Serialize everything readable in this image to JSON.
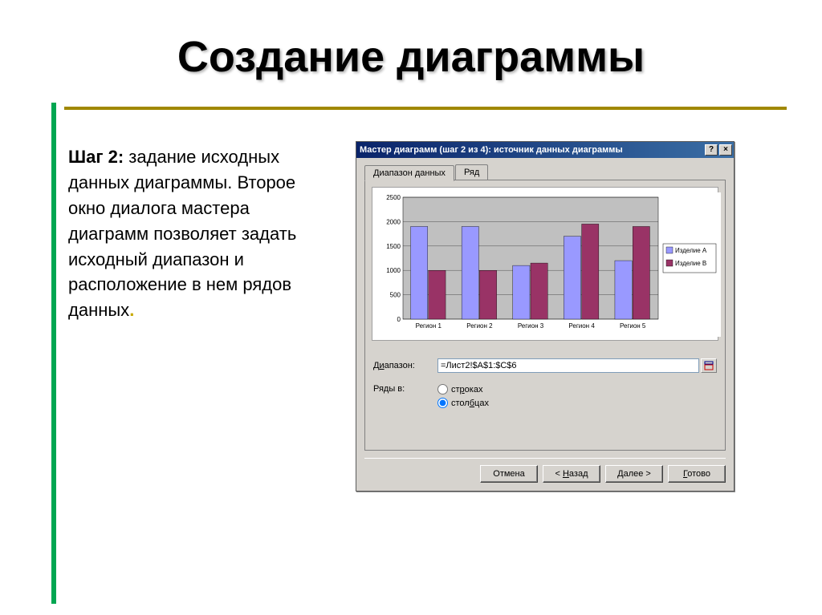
{
  "slide": {
    "title": "Создание диаграммы",
    "step_label": "Шаг 2:",
    "body_text": " задание исходных данных диаграммы. Второе окно диалога мастера диаграмм позволяет задать исходный диапазон и расположение в нем рядов данных",
    "trailing_dot": "."
  },
  "dialog": {
    "title": "Мастер диаграмм (шаг 2 из 4): источник данных диаграммы",
    "help_btn": "?",
    "close_btn": "×",
    "tabs": {
      "data_range": "Диапазон данных",
      "series": "Ряд"
    },
    "range_label": "Диапазон:",
    "range_value": "=Лист2!$A$1:$C$6",
    "rows_in_label": "Ряды в:",
    "radio_rows": "строках",
    "radio_cols": "столбцах",
    "buttons": {
      "cancel": "Отмена",
      "back": "< Назад",
      "next": "Далее >",
      "finish": "Готово"
    }
  },
  "chart": {
    "type": "bar",
    "background_color": "#c0c0c0",
    "plot_bg": "#c0c0c0",
    "outer_bg": "#ffffff",
    "grid_color": "#808080",
    "categories": [
      "Регион 1",
      "Регион 2",
      "Регион 3",
      "Регион 4",
      "Регион 5"
    ],
    "series": [
      {
        "name": "Изделие A",
        "color": "#9999ff",
        "values": [
          1900,
          1900,
          1100,
          1700,
          1200
        ]
      },
      {
        "name": "Изделие B",
        "color": "#993366",
        "values": [
          1000,
          1000,
          1150,
          1950,
          1900
        ]
      }
    ],
    "ylim": [
      0,
      2500
    ],
    "ytick_step": 500,
    "label_fontsize": 8,
    "legend_fontsize": 8,
    "bar_group_width": 0.7
  },
  "colors": {
    "vline": "#00a651",
    "hline": "#a08800"
  }
}
